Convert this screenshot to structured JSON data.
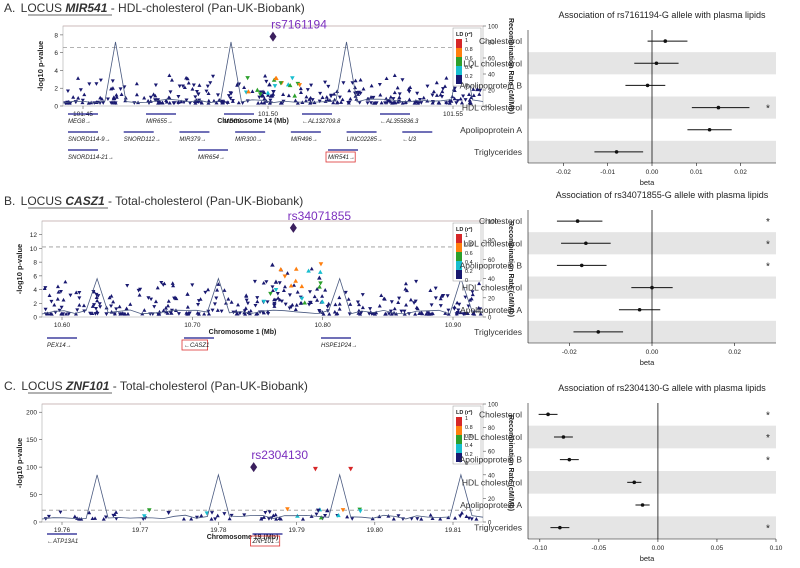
{
  "panels": [
    {
      "letter": "A.",
      "locus_prefix": "LOCUS ",
      "gene": "MIR541",
      "title_rest": " - HDL-cholesterol (Pan-UK-Biobank)",
      "lead_snp": "rs7161194",
      "x_axis_label": "Chromosome 14 (Mb)",
      "x_ticks": [
        "101.45",
        "101.50",
        "101.55"
      ],
      "y_ticks": [
        "0",
        "2",
        "4",
        "6",
        "8"
      ],
      "y_max": 9,
      "lead_value": 7.8,
      "genes_row1": [
        "MEG8→",
        "MIR655→",
        "MEG9→",
        "←AL132709.8",
        "←AL355836.3"
      ],
      "genes_row2": [
        "SNORD114-9→",
        "SNORD112→",
        "MIR379→",
        "MIR300→",
        "MIR496→",
        "LINC02285→",
        "←U3"
      ],
      "genes_row3": [
        "SNORD114-21→",
        "MIR654→",
        "MIR541→"
      ],
      "forest_title": "Association of rs7161194-G allele with plasma lipids",
      "forest_ticks": [
        "-0.02",
        "-0.01",
        "0.00",
        "0.01",
        "0.02"
      ],
      "star": "*"
    },
    {
      "letter": "B.",
      "locus_prefix": "LOCUS ",
      "gene": "CASZ1",
      "title_rest": " - Total-cholesterol (Pan-UK-Biobank)",
      "lead_snp": "rs34071855",
      "x_axis_label": "Chromosome 1 (Mb)",
      "x_ticks": [
        "10.60",
        "10.70",
        "10.80",
        "10.90"
      ],
      "y_ticks": [
        "0",
        "2",
        "4",
        "6",
        "8",
        "10",
        "12"
      ],
      "y_max": 14,
      "lead_value": 13,
      "genes_row1": [
        "PEX14→",
        "←CASZ1",
        "HSPE1P24→"
      ],
      "forest_title": "Association of rs34071855-G allele with plasma lipids",
      "forest_ticks": [
        "-0.02",
        "0.00",
        "0.02"
      ],
      "star": "*"
    },
    {
      "letter": "C.",
      "locus_prefix": "LOCUS ",
      "gene": "ZNF101",
      "title_rest": " - Total-cholesterol (Pan-UK-Biobank)",
      "lead_snp": "rs2304130",
      "x_axis_label": "Chromosome 19 (Mb)",
      "x_ticks": [
        "19.76",
        "19.77",
        "19.78",
        "19.79",
        "19.80",
        "19.81"
      ],
      "y_ticks": [
        "0",
        "50",
        "100",
        "150",
        "200"
      ],
      "y_max": 215,
      "lead_value": 100,
      "genes_row1": [
        "←ATP13A1",
        "ZNF101→"
      ],
      "forest_title": "Association of rs2304130-G allele with plasma lipids",
      "forest_ticks": [
        "-0.10",
        "-0.05",
        "0.00",
        "0.05",
        "0.10"
      ],
      "star": "*"
    }
  ],
  "common": {
    "y_label": "-log10 p-value",
    "rec_label": "Recombination Rate (cM/Mb)",
    "rec_ticks": [
      "0",
      "20",
      "40",
      "60",
      "80",
      "100"
    ],
    "ld_title": "LD (r²)",
    "ld_labels": [
      "1",
      "0.8",
      "0.6",
      "0.4",
      "0.2",
      "0"
    ],
    "ld_colors": [
      "#d62728",
      "#ff7f0e",
      "#2ca02c",
      "#17becf",
      "#191970"
    ],
    "forest_xlabel": "beta",
    "snp_color": "#7b2fbe"
  },
  "chart_data": [
    {
      "type": "scatter",
      "title": "Association of rs7161194-G allele with plasma lipids",
      "xlabel": "beta",
      "ylabel": "",
      "categories": [
        "Cholesterol",
        "LDL cholesterol",
        "Apolipoprotein B",
        "HDL cholesterol",
        "Apolipoprotein A",
        "Triglycerides"
      ],
      "beta": [
        0.003,
        0.001,
        -0.001,
        0.015,
        0.013,
        -0.008
      ],
      "ci_low": [
        -0.001,
        -0.004,
        -0.006,
        0.009,
        0.008,
        -0.013
      ],
      "ci_high": [
        0.008,
        0.006,
        0.003,
        0.022,
        0.018,
        -0.002
      ],
      "significant": [
        false,
        false,
        false,
        true,
        false,
        false
      ],
      "xlim": [
        -0.028,
        0.028
      ]
    },
    {
      "type": "scatter",
      "title": "Association of rs34071855-G allele with plasma lipids",
      "xlabel": "beta",
      "ylabel": "",
      "categories": [
        "Cholesterol",
        "LDL cholesterol",
        "Apolipoprotein B",
        "HDL cholesterol",
        "Apolipoprotein A",
        "Triglycerides"
      ],
      "beta": [
        -0.018,
        -0.016,
        -0.017,
        0.0,
        -0.003,
        -0.013
      ],
      "ci_low": [
        -0.023,
        -0.022,
        -0.023,
        -0.005,
        -0.008,
        -0.019
      ],
      "ci_high": [
        -0.012,
        -0.01,
        -0.011,
        0.005,
        0.002,
        -0.007
      ],
      "significant": [
        true,
        true,
        true,
        false,
        false,
        false
      ],
      "xlim": [
        -0.03,
        0.03
      ]
    },
    {
      "type": "scatter",
      "title": "Association of rs2304130-G allele with plasma lipids",
      "xlabel": "beta",
      "ylabel": "",
      "categories": [
        "Cholesterol",
        "LDL cholesterol",
        "Apolipoprotein B",
        "HDL cholesterol",
        "Apolipoprotein A",
        "Triglycerides"
      ],
      "beta": [
        -0.093,
        -0.08,
        -0.075,
        -0.02,
        -0.013,
        -0.083
      ],
      "ci_low": [
        -0.101,
        -0.088,
        -0.083,
        -0.026,
        -0.019,
        -0.091
      ],
      "ci_high": [
        -0.085,
        -0.072,
        -0.067,
        -0.014,
        -0.007,
        -0.075
      ],
      "significant": [
        true,
        true,
        true,
        false,
        false,
        true
      ],
      "xlim": [
        -0.11,
        0.1
      ]
    }
  ]
}
